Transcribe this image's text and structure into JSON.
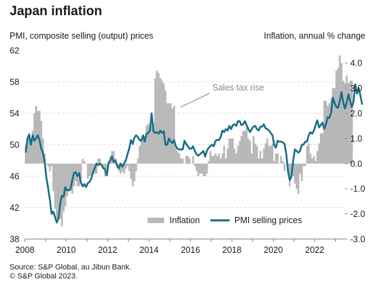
{
  "chart_data": {
    "type": "bar+line",
    "title": "Japan inflation",
    "left_axis_label": "PMI, composite selling (output) prices",
    "right_axis_label": "Inflation, annual % change",
    "left_ylim": [
      38,
      62
    ],
    "left_ticks": [
      "62",
      "58",
      "54",
      "50",
      "46",
      "42",
      "38"
    ],
    "right_ylim": [
      -3.0,
      4.5
    ],
    "right_ticks": [
      "4.0",
      "3.0",
      "2.0",
      "1.0",
      "0.0",
      "-1.0",
      "-2.0",
      "-3.0"
    ],
    "x_ticks": [
      "2008",
      "2010",
      "2012",
      "2014",
      "2016",
      "2018",
      "2020",
      "2022"
    ],
    "grid": true,
    "legend_position": "bottom-right",
    "annotation": "Sales tax rise",
    "source_line1": "Source: S&P Global, au Jibun Bank.",
    "source_line2": "© S&P Global 2023.",
    "series": [
      {
        "name": "Inflation",
        "axis": "right",
        "kind": "bar",
        "color": "#b8b8b8",
        "start": "2008-01",
        "values": [
          0.7,
          1.0,
          1.2,
          0.8,
          1.3,
          2.0,
          2.3,
          2.1,
          2.1,
          1.7,
          1.0,
          0.4,
          0.0,
          -0.1,
          -0.3,
          -0.1,
          -1.1,
          -1.8,
          -2.2,
          -2.2,
          -2.2,
          -2.5,
          -1.9,
          -1.7,
          -1.3,
          -1.1,
          -1.1,
          -1.2,
          -0.9,
          -0.7,
          -0.9,
          -0.9,
          -0.6,
          0.2,
          0.1,
          0.0,
          -0.6,
          -0.5,
          -0.5,
          -0.4,
          -0.4,
          -0.4,
          0.2,
          0.2,
          0.0,
          -0.2,
          -0.5,
          -0.2,
          0.1,
          0.3,
          0.5,
          0.5,
          0.2,
          -0.2,
          -0.3,
          -0.4,
          -0.3,
          -0.4,
          -0.2,
          -0.1,
          -0.3,
          -0.6,
          -0.9,
          -0.7,
          -0.3,
          0.2,
          0.7,
          0.9,
          1.1,
          1.1,
          1.5,
          1.6,
          1.4,
          1.5,
          1.6,
          3.4,
          3.7,
          3.6,
          3.4,
          3.3,
          3.2,
          2.9,
          2.4,
          2.4,
          2.4,
          2.2,
          2.3,
          0.6,
          0.5,
          0.4,
          0.2,
          0.2,
          0.0,
          0.3,
          0.3,
          0.2,
          0.0,
          0.3,
          -0.1,
          -0.3,
          -0.5,
          -0.4,
          -0.4,
          -0.5,
          -0.5,
          -0.4,
          0.1,
          0.5,
          0.3,
          0.3,
          0.4,
          0.3,
          0.4,
          0.2,
          0.4,
          0.7,
          0.2,
          0.6,
          1.0,
          1.0,
          1.0,
          0.6,
          0.4,
          0.7,
          0.9,
          1.1,
          1.3,
          1.3,
          1.4,
          1.0,
          0.9,
          0.4,
          1.1,
          0.8,
          0.7,
          0.2,
          0.5,
          0.2,
          0.6,
          0.8,
          1.0,
          0.7,
          0.7,
          0.8,
          0.1,
          0.4,
          0.4,
          0.0,
          0.3,
          0.1,
          -0.3,
          0.0,
          -0.4,
          -0.9,
          -0.6,
          -0.5,
          -0.8,
          -1.0,
          -1.2,
          -0.4,
          -0.7,
          -0.1,
          -0.1,
          0.7,
          0.8,
          0.4,
          0.2,
          0.3,
          0.1,
          0.5,
          0.8,
          1.2,
          1.2,
          2.5,
          2.5,
          2.3,
          2.4,
          2.6,
          3.0,
          3.0,
          3.7,
          3.8,
          4.3,
          4.0,
          3.3,
          3.2,
          3.5,
          3.2,
          3.3,
          3.3
        ]
      },
      {
        "name": "PMI selling prices",
        "axis": "left",
        "kind": "line",
        "color": "#176d86",
        "start": "2008-01",
        "values": [
          49.0,
          50.8,
          51.3,
          50.0,
          51.2,
          50.5,
          50.8,
          51.2,
          50.6,
          49.5,
          49.0,
          47.8,
          45.8,
          44.5,
          43.0,
          41.2,
          41.5,
          40.8,
          40.1,
          40.6,
          42.5,
          43.5,
          43.4,
          44.6,
          44.2,
          44.2,
          44.4,
          45.5,
          46.4,
          46.5,
          46.0,
          46.4,
          45.2,
          44.7,
          45.0,
          44.6,
          45.1,
          45.3,
          45.7,
          46.5,
          47.0,
          47.6,
          47.4,
          47.6,
          47.4,
          47.0,
          46.9,
          46.1,
          47.6,
          48.0,
          48.5,
          47.8,
          48.0,
          47.3,
          47.0,
          47.6,
          47.2,
          47.6,
          48.0,
          48.8,
          49.5,
          50.6,
          50.1,
          50.9,
          51.2,
          51.0,
          50.6,
          50.5,
          51.2,
          50.4,
          51.4,
          51.5,
          51.8,
          54.0,
          51.7,
          51.5,
          51.6,
          51.4,
          51.8,
          51.5,
          51.7,
          50.0,
          50.0,
          50.8,
          50.4,
          50.2,
          50.6,
          49.8,
          49.5,
          49.4,
          49.4,
          49.4,
          50.5,
          50.1,
          49.8,
          49.5,
          49.5,
          49.8,
          49.2,
          48.8,
          48.6,
          48.8,
          49.0,
          49.2,
          48.5,
          49.2,
          49.6,
          49.8,
          50.0,
          49.8,
          50.5,
          50.6,
          50.6,
          51.0,
          51.8,
          51.6,
          52.0,
          51.8,
          52.4,
          52.0,
          52.5,
          52.6,
          52.4,
          53.0,
          53.0,
          52.5,
          52.6,
          53.0,
          52.5,
          52.0,
          51.6,
          52.0,
          52.3,
          52.4,
          52.0,
          51.8,
          52.3,
          52.3,
          52.6,
          52.1,
          52.0,
          51.8,
          51.5,
          51.2,
          50.0,
          49.6,
          50.5,
          50.4,
          50.4,
          50.3,
          50.1,
          48.8,
          46.6,
          45.5,
          46.0,
          48.0,
          49.4,
          49.2,
          49.0,
          49.2,
          50.0,
          50.0,
          50.4,
          50.4,
          51.2,
          51.6,
          51.4,
          51.8,
          52.5,
          53.1,
          52.2,
          52.5,
          52.8,
          52.0,
          52.6,
          53.5,
          53.4,
          54.1,
          56.0,
          55.3,
          54.8,
          54.7,
          55.5,
          56.7,
          55.4,
          54.6,
          55.4,
          56.4,
          55.5,
          54.8,
          55.5,
          57.7,
          56.5,
          57.2,
          56.2,
          55.1
        ]
      }
    ]
  },
  "legend": {
    "inflation_label": "Inflation",
    "pmi_label": "PMI selling prices"
  }
}
